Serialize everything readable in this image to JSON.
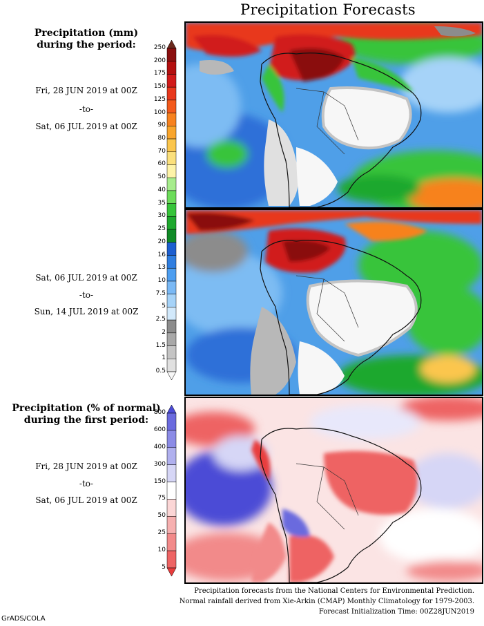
{
  "title": "Precipitation Forecasts",
  "panel_mm": {
    "heading_line1": "Precipitation (mm)",
    "heading_line2": "during the period:",
    "period1": {
      "start": "Fri, 28 JUN 2019 at 00Z",
      "sep": "-to-",
      "end": "Sat, 06 JUL 2019 at 00Z"
    },
    "period2": {
      "start": "Sat, 06 JUL 2019 at 00Z",
      "sep": "-to-",
      "end": "Sun, 14 JUL 2019 at 00Z"
    },
    "colorbar": {
      "levels": [
        "250",
        "200",
        "175",
        "150",
        "125",
        "100",
        "90",
        "80",
        "70",
        "60",
        "50",
        "40",
        "35",
        "30",
        "25",
        "20",
        "16",
        "13",
        "10",
        "7.5",
        "5",
        "2.5",
        "2",
        "1.5",
        "1",
        "0.5"
      ],
      "colors": [
        "#6b2a1e",
        "#8a0f0f",
        "#b30f0f",
        "#d11a1a",
        "#e8381d",
        "#f35a1c",
        "#f7821f",
        "#f9a52c",
        "#fbc64d",
        "#fbe07c",
        "#fdf3a8",
        "#a6ec8c",
        "#6cdc5a",
        "#37c43a",
        "#1fa82e",
        "#118a27",
        "#1d5fd0",
        "#2f7ee0",
        "#4d9ef0",
        "#7ab9f5",
        "#a6d3f8",
        "#d2e9fb",
        "#8c8c8c",
        "#a8a8a8",
        "#c4c4c4",
        "#e0e0e0",
        "#f7f7f7"
      ]
    }
  },
  "panel_pct": {
    "heading_line1": "Precipitation (% of normal)",
    "heading_line2": "during the first period:",
    "period": {
      "start": "Fri, 28 JUN 2019 at 00Z",
      "sep": "-to-",
      "end": "Sat, 06 JUL 2019 at 00Z"
    },
    "colorbar": {
      "levels": [
        "800",
        "600",
        "400",
        "300",
        "150",
        "75",
        "50",
        "25",
        "10",
        "5"
      ],
      "colors": [
        "#4b4bd6",
        "#6a6ade",
        "#8b8be6",
        "#b0b0ee",
        "#d6d6f6",
        "#ffffff",
        "#fbd6d6",
        "#f6b0b0",
        "#f28a8a",
        "#ee6464",
        "#e83c3c"
      ]
    }
  },
  "footer": {
    "line1": "Precipitation forecasts from the National Centers for Environmental Prediction.",
    "line2": "Normal rainfall derived from Xie-Arkin (CMAP) Monthly Climatology for 1979-2003.",
    "line3": "Forecast Initialization Time: 00Z28JUN2019"
  },
  "credit": "GrADS/COLA"
}
